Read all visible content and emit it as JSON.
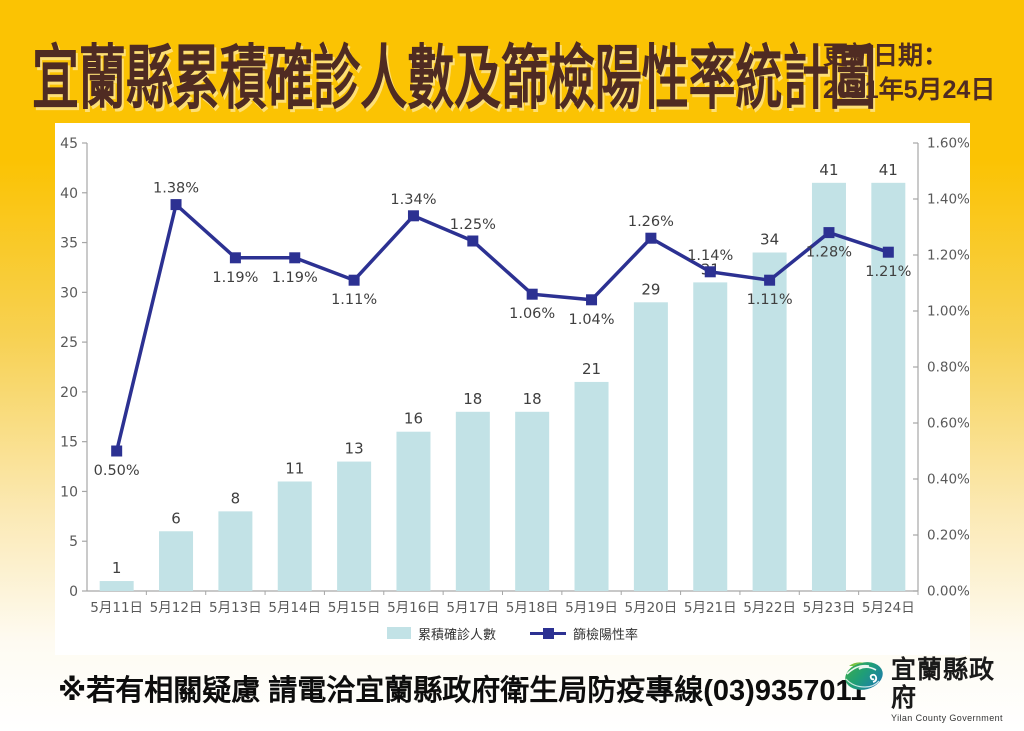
{
  "header": {
    "title": "宜蘭縣累積確診人數及篩檢陽性率統計圖",
    "update_label": "更新日期：",
    "update_date": "2021年5月24日"
  },
  "chart_data": {
    "type": "bar",
    "title": "宜蘭縣累積確診人數及篩檢陽性率統計圖",
    "categories": [
      "5月11日",
      "5月12日",
      "5月13日",
      "5月14日",
      "5月15日",
      "5月16日",
      "5月17日",
      "5月18日",
      "5月19日",
      "5月20日",
      "5月21日",
      "5月22日",
      "5月23日",
      "5月24日"
    ],
    "series": [
      {
        "name": "累積確診人數",
        "type": "bar",
        "axis": "left",
        "values": [
          1,
          6,
          8,
          11,
          13,
          16,
          18,
          18,
          21,
          29,
          31,
          34,
          41,
          41
        ],
        "color": "#c2e2e6"
      },
      {
        "name": "篩檢陽性率",
        "type": "line",
        "axis": "right",
        "values": [
          0.5,
          1.38,
          1.19,
          1.19,
          1.11,
          1.34,
          1.25,
          1.06,
          1.04,
          1.26,
          1.14,
          1.11,
          1.28,
          1.21
        ],
        "labels": [
          "0.50%",
          "1.38%",
          "1.19%",
          "1.19%",
          "1.11%",
          "1.34%",
          "1.25%",
          "1.06%",
          "1.04%",
          "1.26%",
          "1.14%",
          "1.11%",
          "1.28%",
          "1.21%"
        ],
        "label_side": [
          "below",
          "above",
          "below",
          "below",
          "below",
          "above",
          "above",
          "below",
          "below",
          "above",
          "above",
          "below",
          "below",
          "below"
        ],
        "color": "#2c3192"
      }
    ],
    "left_axis": {
      "min": 0,
      "max": 45,
      "step": 5,
      "ticks": [
        "0",
        "5",
        "10",
        "15",
        "20",
        "25",
        "30",
        "35",
        "40",
        "45"
      ]
    },
    "right_axis": {
      "min": 0,
      "max": 1.6,
      "step": 0.2,
      "ticks": [
        "0.00%",
        "0.20%",
        "0.40%",
        "0.60%",
        "0.80%",
        "1.00%",
        "1.20%",
        "1.40%",
        "1.60%"
      ]
    },
    "grid": false,
    "legend_position": "bottom"
  },
  "legend": {
    "bar_label": "累積確診人數",
    "line_label": "篩檢陽性率"
  },
  "footer": {
    "note": "※若有相關疑慮 請電洽宜蘭縣政府衛生局防疫專線(03)9357011",
    "logo_name": "宜蘭縣政府",
    "logo_sub": "Yilan County Government"
  },
  "colors": {
    "background_gold": "#fbc303",
    "title_brown": "#4f2b22",
    "bar_fill": "#c2e2e6",
    "line_navy": "#2c3192",
    "axis_line": "#a6a6a6",
    "axis_label": "#595959",
    "value_label": "#3f3f3f",
    "panel_white": "#ffffff"
  },
  "icons": {
    "logo_icon": "yilan-swirl-logo"
  }
}
